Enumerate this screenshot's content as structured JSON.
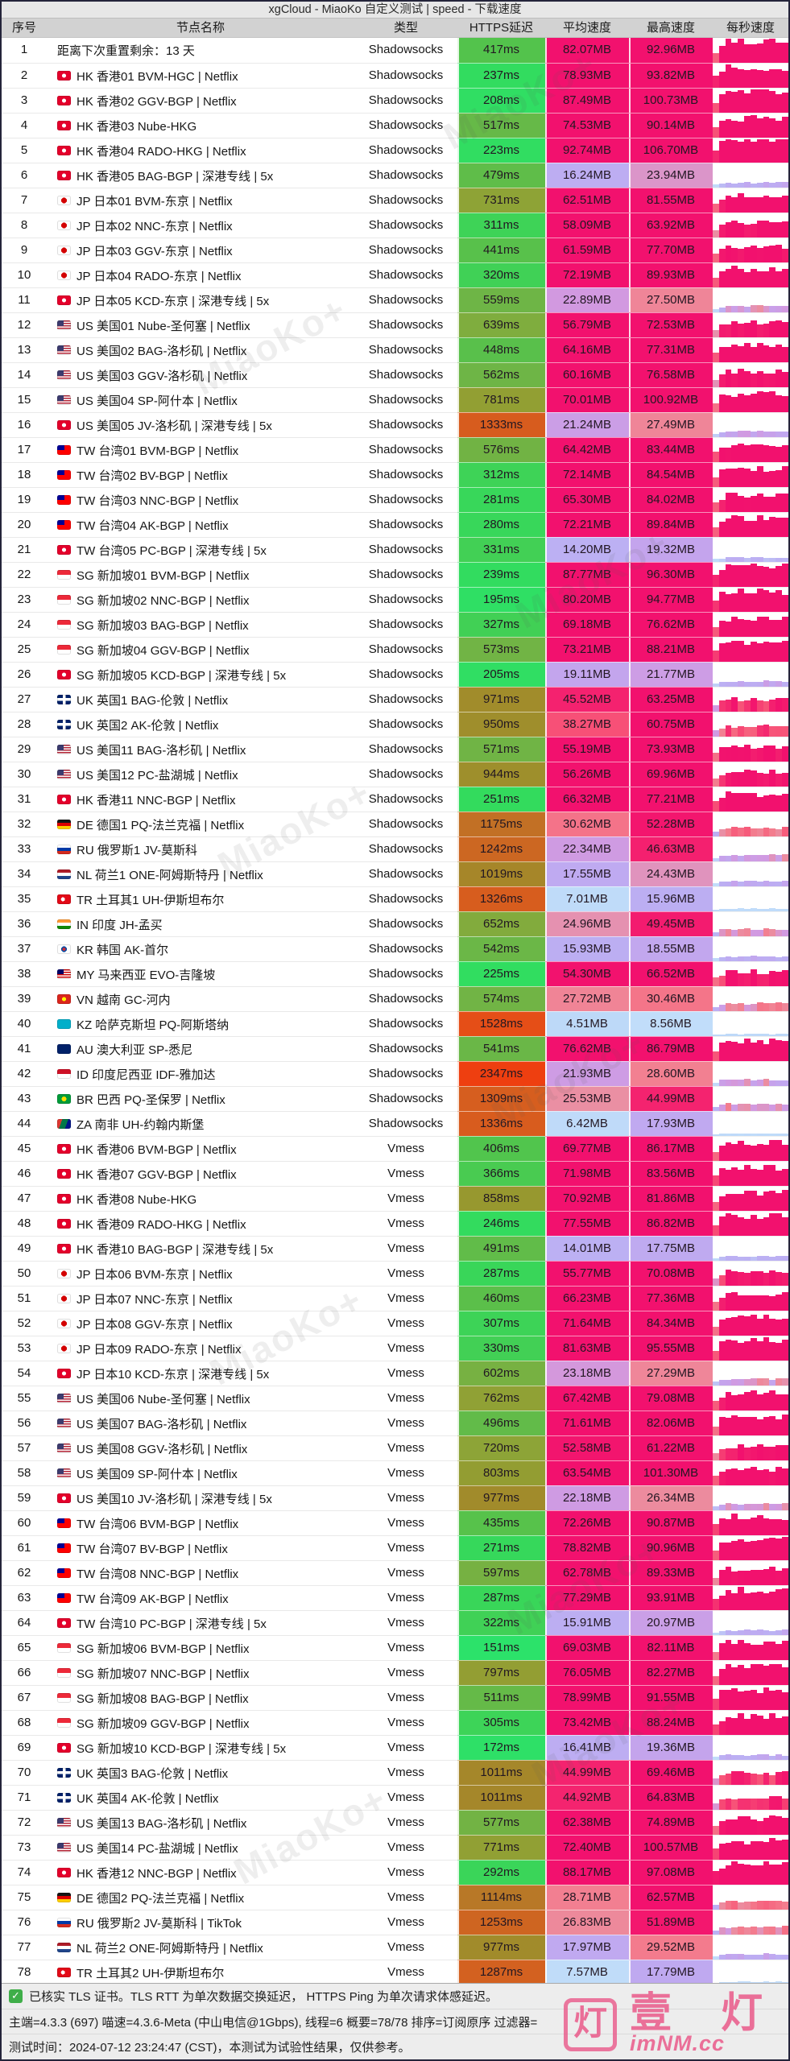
{
  "title": "xgCloud - MiaoKo 自定义测试 | speed - 下载速度",
  "table": {
    "columns": [
      "序号",
      "节点名称",
      "类型",
      "HTTPS延迟",
      "平均速度",
      "最高速度",
      "每秒速度"
    ],
    "rows": [
      {
        "n": "1",
        "cc": "",
        "name": "距离下次重置剩余：13 天",
        "type": "Shadowsocks",
        "lat": "417ms",
        "avg": "82.07MB",
        "max": "92.96MB"
      },
      {
        "n": "2",
        "cc": "hk",
        "name": "HK 香港01 BVM-HGC | Netflix",
        "type": "Shadowsocks",
        "lat": "237ms",
        "avg": "78.93MB",
        "max": "93.82MB"
      },
      {
        "n": "3",
        "cc": "hk",
        "name": "HK 香港02 GGV-BGP | Netflix",
        "type": "Shadowsocks",
        "lat": "208ms",
        "avg": "87.49MB",
        "max": "100.73MB"
      },
      {
        "n": "4",
        "cc": "hk",
        "name": "HK 香港03 Nube-HKG",
        "type": "Shadowsocks",
        "lat": "517ms",
        "avg": "74.53MB",
        "max": "90.14MB"
      },
      {
        "n": "5",
        "cc": "hk",
        "name": "HK 香港04 RADO-HKG | Netflix",
        "type": "Shadowsocks",
        "lat": "223ms",
        "avg": "92.74MB",
        "max": "106.70MB"
      },
      {
        "n": "6",
        "cc": "hk",
        "name": "HK 香港05 BAG-BGP | 深港专线 | 5x",
        "type": "Shadowsocks",
        "lat": "479ms",
        "avg": "16.24MB",
        "max": "23.94MB"
      },
      {
        "n": "7",
        "cc": "jp",
        "name": "JP 日本01 BVM-东京 | Netflix",
        "type": "Shadowsocks",
        "lat": "731ms",
        "avg": "62.51MB",
        "max": "81.55MB"
      },
      {
        "n": "8",
        "cc": "jp",
        "name": "JP 日本02 NNC-东京 | Netflix",
        "type": "Shadowsocks",
        "lat": "311ms",
        "avg": "58.09MB",
        "max": "63.92MB"
      },
      {
        "n": "9",
        "cc": "jp",
        "name": "JP 日本03 GGV-东京 | Netflix",
        "type": "Shadowsocks",
        "lat": "441ms",
        "avg": "61.59MB",
        "max": "77.70MB"
      },
      {
        "n": "10",
        "cc": "jp",
        "name": "JP 日本04 RADO-东京 | Netflix",
        "type": "Shadowsocks",
        "lat": "320ms",
        "avg": "72.19MB",
        "max": "89.93MB"
      },
      {
        "n": "11",
        "cc": "hk",
        "name": "JP 日本05 KCD-东京 | 深港专线 | 5x",
        "type": "Shadowsocks",
        "lat": "559ms",
        "avg": "22.89MB",
        "max": "27.50MB"
      },
      {
        "n": "12",
        "cc": "us",
        "name": "US 美国01 Nube-圣何塞 | Netflix",
        "type": "Shadowsocks",
        "lat": "639ms",
        "avg": "56.79MB",
        "max": "72.53MB"
      },
      {
        "n": "13",
        "cc": "us",
        "name": "US 美国02 BAG-洛杉矶 | Netflix",
        "type": "Shadowsocks",
        "lat": "448ms",
        "avg": "64.16MB",
        "max": "77.31MB"
      },
      {
        "n": "14",
        "cc": "us",
        "name": "US 美国03 GGV-洛杉矶 | Netflix",
        "type": "Shadowsocks",
        "lat": "562ms",
        "avg": "60.16MB",
        "max": "76.58MB"
      },
      {
        "n": "15",
        "cc": "us",
        "name": "US 美国04 SP-阿什本 | Netflix",
        "type": "Shadowsocks",
        "lat": "781ms",
        "avg": "70.01MB",
        "max": "100.92MB"
      },
      {
        "n": "16",
        "cc": "hk",
        "name": "US 美国05 JV-洛杉矶 | 深港专线 | 5x",
        "type": "Shadowsocks",
        "lat": "1333ms",
        "avg": "21.24MB",
        "max": "27.49MB"
      },
      {
        "n": "17",
        "cc": "tw",
        "name": "TW 台湾01 BVM-BGP | Netflix",
        "type": "Shadowsocks",
        "lat": "576ms",
        "avg": "64.42MB",
        "max": "83.44MB"
      },
      {
        "n": "18",
        "cc": "tw",
        "name": "TW 台湾02 BV-BGP | Netflix",
        "type": "Shadowsocks",
        "lat": "312ms",
        "avg": "72.14MB",
        "max": "84.54MB"
      },
      {
        "n": "19",
        "cc": "tw",
        "name": "TW 台湾03 NNC-BGP | Netflix",
        "type": "Shadowsocks",
        "lat": "281ms",
        "avg": "65.30MB",
        "max": "84.02MB"
      },
      {
        "n": "20",
        "cc": "tw",
        "name": "TW 台湾04 AK-BGP | Netflix",
        "type": "Shadowsocks",
        "lat": "280ms",
        "avg": "72.21MB",
        "max": "89.84MB"
      },
      {
        "n": "21",
        "cc": "hk",
        "name": "TW 台湾05 PC-BGP | 深港专线 | 5x",
        "type": "Shadowsocks",
        "lat": "331ms",
        "avg": "14.20MB",
        "max": "19.32MB"
      },
      {
        "n": "22",
        "cc": "sg",
        "name": "SG 新加坡01 BVM-BGP | Netflix",
        "type": "Shadowsocks",
        "lat": "239ms",
        "avg": "87.77MB",
        "max": "96.30MB"
      },
      {
        "n": "23",
        "cc": "sg",
        "name": "SG 新加坡02 NNC-BGP | Netflix",
        "type": "Shadowsocks",
        "lat": "195ms",
        "avg": "80.20MB",
        "max": "94.77MB"
      },
      {
        "n": "24",
        "cc": "sg",
        "name": "SG 新加坡03 BAG-BGP | Netflix",
        "type": "Shadowsocks",
        "lat": "327ms",
        "avg": "69.18MB",
        "max": "76.62MB"
      },
      {
        "n": "25",
        "cc": "sg",
        "name": "SG 新加坡04 GGV-BGP | Netflix",
        "type": "Shadowsocks",
        "lat": "573ms",
        "avg": "73.21MB",
        "max": "88.21MB"
      },
      {
        "n": "26",
        "cc": "hk",
        "name": "SG 新加坡05 KCD-BGP | 深港专线 | 5x",
        "type": "Shadowsocks",
        "lat": "205ms",
        "avg": "19.11MB",
        "max": "21.77MB"
      },
      {
        "n": "27",
        "cc": "uk",
        "name": "UK 英国1 BAG-伦敦 | Netflix",
        "type": "Shadowsocks",
        "lat": "971ms",
        "avg": "45.52MB",
        "max": "63.25MB"
      },
      {
        "n": "28",
        "cc": "uk",
        "name": "UK 英国2 AK-伦敦 | Netflix",
        "type": "Shadowsocks",
        "lat": "950ms",
        "avg": "38.27MB",
        "max": "60.75MB"
      },
      {
        "n": "29",
        "cc": "us",
        "name": "US 美国11 BAG-洛杉矶 | Netflix",
        "type": "Shadowsocks",
        "lat": "571ms",
        "avg": "55.19MB",
        "max": "73.93MB"
      },
      {
        "n": "30",
        "cc": "us",
        "name": "US 美国12 PC-盐湖城 | Netflix",
        "type": "Shadowsocks",
        "lat": "944ms",
        "avg": "56.26MB",
        "max": "69.96MB"
      },
      {
        "n": "31",
        "cc": "hk",
        "name": "HK 香港11 NNC-BGP | Netflix",
        "type": "Shadowsocks",
        "lat": "251ms",
        "avg": "66.32MB",
        "max": "77.21MB"
      },
      {
        "n": "32",
        "cc": "de",
        "name": "DE 德国1 PQ-法兰克福 | Netflix",
        "type": "Shadowsocks",
        "lat": "1175ms",
        "avg": "30.62MB",
        "max": "52.28MB"
      },
      {
        "n": "33",
        "cc": "ru",
        "name": "RU 俄罗斯1 JV-莫斯科",
        "type": "Shadowsocks",
        "lat": "1242ms",
        "avg": "22.34MB",
        "max": "46.63MB"
      },
      {
        "n": "34",
        "cc": "nl",
        "name": "NL 荷兰1 ONE-阿姆斯特丹 | Netflix",
        "type": "Shadowsocks",
        "lat": "1019ms",
        "avg": "17.55MB",
        "max": "24.43MB"
      },
      {
        "n": "35",
        "cc": "tr",
        "name": "TR 土耳其1 UH-伊斯坦布尔",
        "type": "Shadowsocks",
        "lat": "1326ms",
        "avg": "7.01MB",
        "max": "15.96MB"
      },
      {
        "n": "36",
        "cc": "in",
        "name": "IN 印度 JH-孟买",
        "type": "Shadowsocks",
        "lat": "652ms",
        "avg": "24.96MB",
        "max": "49.45MB"
      },
      {
        "n": "37",
        "cc": "kr",
        "name": "KR 韩国 AK-首尔",
        "type": "Shadowsocks",
        "lat": "542ms",
        "avg": "15.93MB",
        "max": "18.55MB"
      },
      {
        "n": "38",
        "cc": "my",
        "name": "MY 马来西亚 EVO-吉隆坡",
        "type": "Shadowsocks",
        "lat": "225ms",
        "avg": "54.30MB",
        "max": "66.52MB"
      },
      {
        "n": "39",
        "cc": "vn",
        "name": "VN 越南 GC-河内",
        "type": "Shadowsocks",
        "lat": "574ms",
        "avg": "27.72MB",
        "max": "30.46MB"
      },
      {
        "n": "40",
        "cc": "kz",
        "name": "KZ 哈萨克斯坦 PQ-阿斯塔纳",
        "type": "Shadowsocks",
        "lat": "1528ms",
        "avg": "4.51MB",
        "max": "8.56MB"
      },
      {
        "n": "41",
        "cc": "au",
        "name": "AU 澳大利亚 SP-悉尼",
        "type": "Shadowsocks",
        "lat": "541ms",
        "avg": "76.62MB",
        "max": "86.79MB"
      },
      {
        "n": "42",
        "cc": "id",
        "name": "ID 印度尼西亚 IDF-雅加达",
        "type": "Shadowsocks",
        "lat": "2347ms",
        "avg": "21.93MB",
        "max": "28.60MB"
      },
      {
        "n": "43",
        "cc": "br",
        "name": "BR 巴西 PQ-圣保罗 | Netflix",
        "type": "Shadowsocks",
        "lat": "1309ms",
        "avg": "25.53MB",
        "max": "44.99MB"
      },
      {
        "n": "44",
        "cc": "za",
        "name": "ZA 南非 UH-约翰内斯堡",
        "type": "Shadowsocks",
        "lat": "1336ms",
        "avg": "6.42MB",
        "max": "17.93MB"
      },
      {
        "n": "45",
        "cc": "hk",
        "name": "HK 香港06 BVM-BGP | Netflix",
        "type": "Vmess",
        "lat": "406ms",
        "avg": "69.77MB",
        "max": "86.17MB"
      },
      {
        "n": "46",
        "cc": "hk",
        "name": "HK 香港07 GGV-BGP | Netflix",
        "type": "Vmess",
        "lat": "366ms",
        "avg": "71.98MB",
        "max": "83.56MB"
      },
      {
        "n": "47",
        "cc": "hk",
        "name": "HK 香港08 Nube-HKG",
        "type": "Vmess",
        "lat": "858ms",
        "avg": "70.92MB",
        "max": "81.86MB"
      },
      {
        "n": "48",
        "cc": "hk",
        "name": "HK 香港09 RADO-HKG | Netflix",
        "type": "Vmess",
        "lat": "246ms",
        "avg": "77.55MB",
        "max": "86.82MB"
      },
      {
        "n": "49",
        "cc": "hk",
        "name": "HK 香港10 BAG-BGP | 深港专线 | 5x",
        "type": "Vmess",
        "lat": "491ms",
        "avg": "14.01MB",
        "max": "17.75MB"
      },
      {
        "n": "50",
        "cc": "jp",
        "name": "JP 日本06 BVM-东京 | Netflix",
        "type": "Vmess",
        "lat": "287ms",
        "avg": "55.77MB",
        "max": "70.08MB"
      },
      {
        "n": "51",
        "cc": "jp",
        "name": "JP 日本07 NNC-东京 | Netflix",
        "type": "Vmess",
        "lat": "460ms",
        "avg": "66.23MB",
        "max": "77.36MB"
      },
      {
        "n": "52",
        "cc": "jp",
        "name": "JP 日本08 GGV-东京 | Netflix",
        "type": "Vmess",
        "lat": "307ms",
        "avg": "71.64MB",
        "max": "84.34MB"
      },
      {
        "n": "53",
        "cc": "jp",
        "name": "JP 日本09 RADO-东京 | Netflix",
        "type": "Vmess",
        "lat": "330ms",
        "avg": "81.63MB",
        "max": "95.55MB"
      },
      {
        "n": "54",
        "cc": "hk",
        "name": "JP 日本10 KCD-东京 | 深港专线 | 5x",
        "type": "Vmess",
        "lat": "602ms",
        "avg": "23.18MB",
        "max": "27.29MB"
      },
      {
        "n": "55",
        "cc": "us",
        "name": "US 美国06 Nube-圣何塞 | Netflix",
        "type": "Vmess",
        "lat": "762ms",
        "avg": "67.42MB",
        "max": "79.08MB"
      },
      {
        "n": "56",
        "cc": "us",
        "name": "US 美国07 BAG-洛杉矶 | Netflix",
        "type": "Vmess",
        "lat": "496ms",
        "avg": "71.61MB",
        "max": "82.06MB"
      },
      {
        "n": "57",
        "cc": "us",
        "name": "US 美国08 GGV-洛杉矶 | Netflix",
        "type": "Vmess",
        "lat": "720ms",
        "avg": "52.58MB",
        "max": "61.22MB"
      },
      {
        "n": "58",
        "cc": "us",
        "name": "US 美国09 SP-阿什本 | Netflix",
        "type": "Vmess",
        "lat": "803ms",
        "avg": "63.54MB",
        "max": "101.30MB"
      },
      {
        "n": "59",
        "cc": "hk",
        "name": "US 美国10 JV-洛杉矶 | 深港专线 | 5x",
        "type": "Vmess",
        "lat": "977ms",
        "avg": "22.18MB",
        "max": "26.34MB"
      },
      {
        "n": "60",
        "cc": "tw",
        "name": "TW 台湾06 BVM-BGP | Netflix",
        "type": "Vmess",
        "lat": "435ms",
        "avg": "72.26MB",
        "max": "90.87MB"
      },
      {
        "n": "61",
        "cc": "tw",
        "name": "TW 台湾07 BV-BGP | Netflix",
        "type": "Vmess",
        "lat": "271ms",
        "avg": "78.82MB",
        "max": "90.96MB"
      },
      {
        "n": "62",
        "cc": "tw",
        "name": "TW 台湾08 NNC-BGP | Netflix",
        "type": "Vmess",
        "lat": "597ms",
        "avg": "62.78MB",
        "max": "89.33MB"
      },
      {
        "n": "63",
        "cc": "tw",
        "name": "TW 台湾09 AK-BGP | Netflix",
        "type": "Vmess",
        "lat": "287ms",
        "avg": "77.29MB",
        "max": "93.91MB"
      },
      {
        "n": "64",
        "cc": "hk",
        "name": "TW 台湾10 PC-BGP | 深港专线 | 5x",
        "type": "Vmess",
        "lat": "322ms",
        "avg": "15.91MB",
        "max": "20.97MB"
      },
      {
        "n": "65",
        "cc": "sg",
        "name": "SG 新加坡06 BVM-BGP | Netflix",
        "type": "Vmess",
        "lat": "151ms",
        "avg": "69.03MB",
        "max": "82.11MB"
      },
      {
        "n": "66",
        "cc": "sg",
        "name": "SG 新加坡07 NNC-BGP | Netflix",
        "type": "Vmess",
        "lat": "797ms",
        "avg": "76.05MB",
        "max": "82.27MB"
      },
      {
        "n": "67",
        "cc": "sg",
        "name": "SG 新加坡08 BAG-BGP | Netflix",
        "type": "Vmess",
        "lat": "511ms",
        "avg": "78.99MB",
        "max": "91.55MB"
      },
      {
        "n": "68",
        "cc": "sg",
        "name": "SG 新加坡09 GGV-BGP | Netflix",
        "type": "Vmess",
        "lat": "305ms",
        "avg": "73.42MB",
        "max": "88.24MB"
      },
      {
        "n": "69",
        "cc": "hk",
        "name": "SG 新加坡10 KCD-BGP | 深港专线 | 5x",
        "type": "Vmess",
        "lat": "172ms",
        "avg": "16.41MB",
        "max": "19.36MB"
      },
      {
        "n": "70",
        "cc": "uk",
        "name": "UK 英国3 BAG-伦敦 | Netflix",
        "type": "Vmess",
        "lat": "1011ms",
        "avg": "44.99MB",
        "max": "69.46MB"
      },
      {
        "n": "71",
        "cc": "uk",
        "name": "UK 英国4 AK-伦敦 | Netflix",
        "type": "Vmess",
        "lat": "1011ms",
        "avg": "44.92MB",
        "max": "64.83MB"
      },
      {
        "n": "72",
        "cc": "us",
        "name": "US 美国13 BAG-洛杉矶 | Netflix",
        "type": "Vmess",
        "lat": "577ms",
        "avg": "62.38MB",
        "max": "74.89MB"
      },
      {
        "n": "73",
        "cc": "us",
        "name": "US 美国14 PC-盐湖城 | Netflix",
        "type": "Vmess",
        "lat": "771ms",
        "avg": "72.40MB",
        "max": "100.57MB"
      },
      {
        "n": "74",
        "cc": "hk",
        "name": "HK 香港12 NNC-BGP | Netflix",
        "type": "Vmess",
        "lat": "292ms",
        "avg": "88.17MB",
        "max": "97.08MB"
      },
      {
        "n": "75",
        "cc": "de",
        "name": "DE 德国2 PQ-法兰克福 | Netflix",
        "type": "Vmess",
        "lat": "1114ms",
        "avg": "28.71MB",
        "max": "62.57MB"
      },
      {
        "n": "76",
        "cc": "ru",
        "name": "RU 俄罗斯2 JV-莫斯科 | TikTok",
        "type": "Vmess",
        "lat": "1253ms",
        "avg": "26.83MB",
        "max": "51.89MB"
      },
      {
        "n": "77",
        "cc": "nl",
        "name": "NL 荷兰2 ONE-阿姆斯特丹 | Netflix",
        "type": "Vmess",
        "lat": "977ms",
        "avg": "17.97MB",
        "max": "29.52MB"
      },
      {
        "n": "78",
        "cc": "tr",
        "name": "TR 土耳其2 UH-伊斯坦布尔",
        "type": "Vmess",
        "lat": "1287ms",
        "avg": "7.57MB",
        "max": "17.79MB"
      }
    ]
  },
  "footer": {
    "tls_note": "已核实 TLS 证书。TLS RTT 为单次数据交换延迟， HTTPS Ping 为单次请求体感延迟。",
    "meta": "主端=4.3.3 (697) 喵速=4.3.6-Meta (中山电信@1Gbps), 线程=6 概要=78/78 排序=订阅原序 过滤器=",
    "test_time": "测试时间：2024-07-12 23:24:47 (CST)，本测试为试验性结果，仅供参考。"
  },
  "watermark": {
    "diagonal": "MiaoKo+",
    "stamp_char": "灯",
    "big_chars": "壹 灯",
    "site": "imNM.cc"
  },
  "colors": {
    "latency_good": "#2ce26a",
    "latency_bad": "#ee3e10",
    "speed_high": "#f2116e",
    "speed_low": "#bdd8f8"
  }
}
